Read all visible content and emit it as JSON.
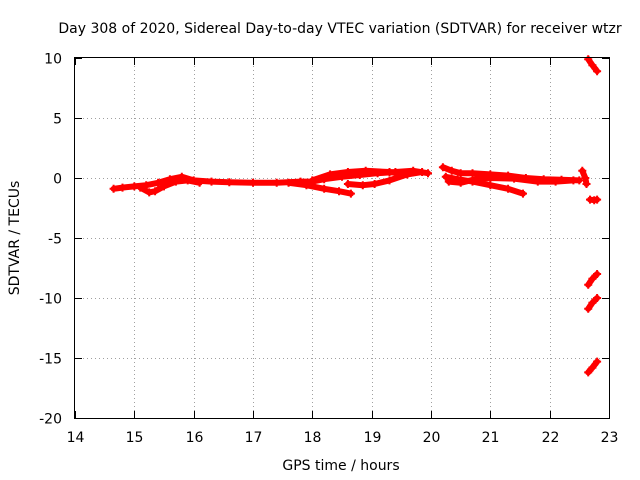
{
  "chart_data": {
    "type": "scatter",
    "title": "Day 308 of 2020, Sidereal Day-to-day VTEC variation (SDTVAR) for receiver wtzr",
    "xlabel": "GPS time / hours",
    "ylabel": "SDTVAR / TECUs",
    "xlim": [
      14,
      23
    ],
    "ylim": [
      -20,
      10
    ],
    "xticks": [
      14,
      15,
      16,
      17,
      18,
      19,
      20,
      21,
      22,
      23
    ],
    "yticks": [
      -20,
      -15,
      -10,
      -5,
      0,
      5,
      10
    ],
    "xtick_labels": [
      "14",
      "15",
      "16",
      "17",
      "18",
      "19",
      "20",
      "21",
      "22",
      "23"
    ],
    "ytick_labels": [
      "-20",
      "-15",
      "-10",
      "-5",
      "0",
      "5",
      "10"
    ],
    "grid": true,
    "marker_color": "#ff0000",
    "series": [
      {
        "name": "main-track-a",
        "points": [
          [
            14.65,
            -0.9
          ],
          [
            14.8,
            -0.8
          ],
          [
            15.0,
            -0.7
          ],
          [
            15.2,
            -0.6
          ],
          [
            15.4,
            -0.4
          ],
          [
            15.6,
            -0.1
          ],
          [
            15.8,
            0.1
          ],
          [
            16.0,
            -0.2
          ],
          [
            16.3,
            -0.3
          ],
          [
            16.6,
            -0.35
          ],
          [
            17.0,
            -0.4
          ],
          [
            17.4,
            -0.4
          ],
          [
            17.8,
            -0.3
          ],
          [
            18.0,
            -0.3
          ],
          [
            18.2,
            -0.1
          ],
          [
            18.5,
            0.1
          ],
          [
            18.8,
            0.25
          ],
          [
            19.1,
            0.4
          ],
          [
            19.4,
            0.5
          ],
          [
            19.7,
            0.6
          ],
          [
            19.95,
            0.4
          ]
        ]
      },
      {
        "name": "main-track-b",
        "points": [
          [
            15.1,
            -0.8
          ],
          [
            15.25,
            -1.2
          ],
          [
            15.35,
            -1.1
          ],
          [
            15.5,
            -0.7
          ],
          [
            15.7,
            -0.3
          ],
          [
            15.9,
            -0.2
          ],
          [
            16.1,
            -0.4
          ]
        ]
      },
      {
        "name": "main-track-c",
        "points": [
          [
            17.6,
            -0.4
          ],
          [
            17.9,
            -0.6
          ],
          [
            18.2,
            -0.9
          ],
          [
            18.45,
            -1.1
          ],
          [
            18.65,
            -1.3
          ]
        ]
      },
      {
        "name": "main-track-d",
        "points": [
          [
            18.0,
            -0.2
          ],
          [
            18.3,
            0.3
          ],
          [
            18.6,
            0.5
          ],
          [
            18.9,
            0.6
          ],
          [
            19.3,
            0.5
          ],
          [
            19.6,
            0.3
          ]
        ]
      },
      {
        "name": "main-track-e",
        "points": [
          [
            18.6,
            -0.5
          ],
          [
            18.85,
            -0.6
          ],
          [
            19.05,
            -0.5
          ],
          [
            19.3,
            -0.2
          ],
          [
            19.6,
            0.3
          ],
          [
            19.85,
            0.5
          ]
        ]
      },
      {
        "name": "post-gap-a",
        "points": [
          [
            20.2,
            0.9
          ],
          [
            20.35,
            0.6
          ],
          [
            20.5,
            0.4
          ],
          [
            20.7,
            0.4
          ],
          [
            21.0,
            0.3
          ],
          [
            21.3,
            0.2
          ],
          [
            21.6,
            0.0
          ],
          [
            21.9,
            -0.1
          ],
          [
            22.2,
            -0.15
          ],
          [
            22.5,
            -0.2
          ]
        ]
      },
      {
        "name": "post-gap-b",
        "points": [
          [
            20.25,
            0.1
          ],
          [
            20.45,
            -0.1
          ],
          [
            20.7,
            -0.3
          ],
          [
            21.0,
            -0.6
          ],
          [
            21.3,
            -0.9
          ],
          [
            21.55,
            -1.3
          ]
        ]
      },
      {
        "name": "post-gap-c",
        "points": [
          [
            20.3,
            -0.3
          ],
          [
            20.5,
            -0.4
          ],
          [
            20.75,
            -0.1
          ],
          [
            21.0,
            0.0
          ],
          [
            21.4,
            -0.05
          ],
          [
            21.8,
            -0.3
          ],
          [
            22.1,
            -0.3
          ],
          [
            22.4,
            -0.2
          ]
        ]
      },
      {
        "name": "post-gap-d",
        "points": [
          [
            22.55,
            0.6
          ],
          [
            22.6,
            0.0
          ],
          [
            22.62,
            -0.5
          ]
        ]
      },
      {
        "name": "late-segment-1",
        "points": [
          [
            22.65,
            9.9
          ],
          [
            22.72,
            9.4
          ],
          [
            22.8,
            8.9
          ]
        ]
      },
      {
        "name": "late-segment-2",
        "points": [
          [
            22.68,
            -1.8
          ],
          [
            22.75,
            -1.85
          ],
          [
            22.8,
            -1.8
          ]
        ]
      },
      {
        "name": "late-segment-3",
        "points": [
          [
            22.65,
            -8.9
          ],
          [
            22.72,
            -8.4
          ],
          [
            22.8,
            -8.0
          ]
        ]
      },
      {
        "name": "late-segment-4",
        "points": [
          [
            22.65,
            -10.9
          ],
          [
            22.72,
            -10.4
          ],
          [
            22.8,
            -10.0
          ]
        ]
      },
      {
        "name": "late-segment-5",
        "points": [
          [
            22.65,
            -16.2
          ],
          [
            22.72,
            -15.8
          ],
          [
            22.8,
            -15.3
          ]
        ]
      }
    ]
  }
}
